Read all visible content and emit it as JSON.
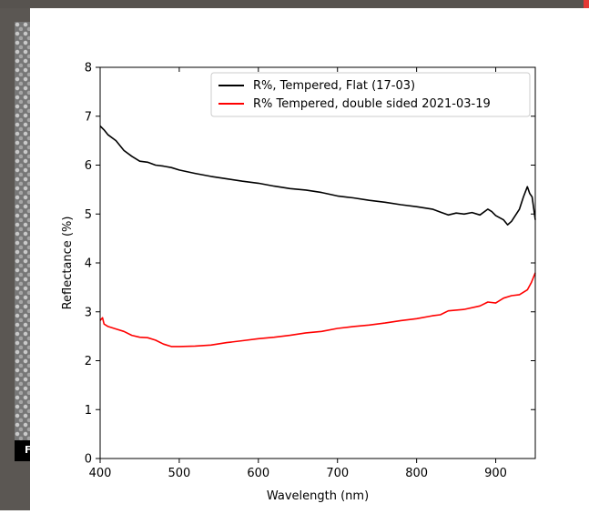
{
  "window": {
    "title": ""
  },
  "side_panel": {
    "chip_label": "F"
  },
  "chart_data": {
    "type": "line",
    "title": "",
    "xlabel": "Wavelength (nm)",
    "ylabel": "Reflectance (%)",
    "xlim": [
      400,
      950
    ],
    "ylim": [
      0,
      8
    ],
    "xticks": [
      400,
      500,
      600,
      700,
      800,
      900
    ],
    "yticks": [
      0,
      1,
      2,
      3,
      4,
      5,
      6,
      7,
      8
    ],
    "grid": false,
    "legend_position": "top-right",
    "series": [
      {
        "name": "R%, Tempered, Flat (17-03)",
        "color": "#000000",
        "x": [
          400,
          405,
          410,
          420,
          430,
          440,
          450,
          460,
          470,
          480,
          490,
          500,
          520,
          540,
          560,
          580,
          600,
          620,
          640,
          660,
          680,
          700,
          720,
          740,
          760,
          780,
          800,
          820,
          830,
          840,
          850,
          860,
          870,
          880,
          890,
          895,
          900,
          910,
          915,
          920,
          930,
          935,
          940,
          943,
          946,
          950
        ],
        "y": [
          6.8,
          6.72,
          6.62,
          6.5,
          6.3,
          6.18,
          6.08,
          6.06,
          6.0,
          5.98,
          5.95,
          5.9,
          5.83,
          5.77,
          5.72,
          5.67,
          5.63,
          5.57,
          5.52,
          5.49,
          5.44,
          5.37,
          5.33,
          5.28,
          5.24,
          5.19,
          5.15,
          5.1,
          5.04,
          4.98,
          5.02,
          5.0,
          5.03,
          4.98,
          5.1,
          5.05,
          4.97,
          4.88,
          4.78,
          4.85,
          5.1,
          5.35,
          5.56,
          5.42,
          5.35,
          4.88
        ]
      },
      {
        "name": "R% Tempered, double sided 2021-03-19",
        "color": "#ff0000",
        "x": [
          400,
          403,
          405,
          410,
          420,
          430,
          440,
          450,
          460,
          470,
          480,
          490,
          500,
          520,
          540,
          560,
          580,
          600,
          620,
          640,
          660,
          680,
          700,
          720,
          740,
          760,
          780,
          800,
          820,
          830,
          840,
          860,
          880,
          890,
          900,
          910,
          920,
          930,
          940,
          945,
          950
        ],
        "y": [
          2.82,
          2.88,
          2.75,
          2.7,
          2.65,
          2.6,
          2.52,
          2.48,
          2.47,
          2.42,
          2.34,
          2.29,
          2.29,
          2.3,
          2.32,
          2.37,
          2.41,
          2.45,
          2.48,
          2.52,
          2.57,
          2.6,
          2.66,
          2.7,
          2.73,
          2.77,
          2.82,
          2.86,
          2.92,
          2.94,
          3.02,
          3.05,
          3.12,
          3.2,
          3.18,
          3.28,
          3.33,
          3.35,
          3.45,
          3.6,
          3.8
        ]
      }
    ]
  }
}
